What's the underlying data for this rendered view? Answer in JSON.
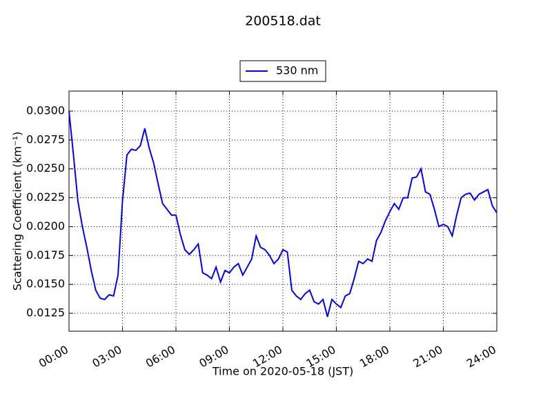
{
  "chart_data": {
    "type": "line",
    "title": "200518.dat",
    "x_label": "Time on 2020-05-18 (JST)",
    "y_label": "Scattering Coefficient (km⁻¹)",
    "x": [
      0,
      0.25,
      0.5,
      0.75,
      1,
      1.25,
      1.5,
      1.75,
      2,
      2.25,
      2.5,
      2.75,
      3,
      3.25,
      3.5,
      3.75,
      4,
      4.25,
      4.5,
      4.75,
      5,
      5.25,
      5.5,
      5.75,
      6,
      6.25,
      6.5,
      6.75,
      7,
      7.25,
      7.5,
      7.75,
      8,
      8.25,
      8.5,
      8.75,
      9,
      9.25,
      9.5,
      9.75,
      10,
      10.25,
      10.5,
      10.75,
      11,
      11.25,
      11.5,
      11.75,
      12,
      12.25,
      12.5,
      12.75,
      13,
      13.25,
      13.5,
      13.75,
      14,
      14.25,
      14.5,
      14.75,
      15,
      15.25,
      15.5,
      15.75,
      16,
      16.25,
      16.5,
      16.75,
      17,
      17.25,
      17.5,
      17.75,
      18,
      18.25,
      18.5,
      18.75,
      19,
      19.25,
      19.5,
      19.75,
      20,
      20.25,
      20.5,
      20.75,
      21,
      21.25,
      21.5,
      21.75,
      22,
      22.25,
      22.5,
      22.75,
      23,
      23.25,
      23.5,
      23.75,
      24
    ],
    "series": [
      {
        "name": "530 nm",
        "color": "#0000ff",
        "values": [
          0.03,
          0.0262,
          0.0222,
          0.02,
          0.0182,
          0.0162,
          0.0145,
          0.0138,
          0.0137,
          0.0141,
          0.014,
          0.0158,
          0.0222,
          0.0262,
          0.0267,
          0.0266,
          0.027,
          0.0285,
          0.0268,
          0.0255,
          0.0237,
          0.022,
          0.0215,
          0.021,
          0.021,
          0.0193,
          0.018,
          0.0176,
          0.018,
          0.0185,
          0.016,
          0.0158,
          0.0155,
          0.0165,
          0.0152,
          0.0162,
          0.016,
          0.0165,
          0.0168,
          0.0158,
          0.0165,
          0.0172,
          0.0192,
          0.0182,
          0.018,
          0.0175,
          0.0168,
          0.0172,
          0.018,
          0.0178,
          0.0145,
          0.014,
          0.0137,
          0.0142,
          0.0145,
          0.0135,
          0.0133,
          0.0137,
          0.0122,
          0.0137,
          0.0133,
          0.013,
          0.014,
          0.0142,
          0.0155,
          0.017,
          0.0168,
          0.0172,
          0.017,
          0.0188,
          0.0195,
          0.0205,
          0.0213,
          0.022,
          0.0215,
          0.0225,
          0.0225,
          0.0242,
          0.0243,
          0.025,
          0.023,
          0.0228,
          0.0215,
          0.02,
          0.0202,
          0.02,
          0.0192,
          0.021,
          0.0225,
          0.0228,
          0.0229,
          0.0223,
          0.0228,
          0.023,
          0.0232,
          0.0218,
          0.0212
        ]
      }
    ],
    "xlim": [
      0,
      24
    ],
    "xticks": [
      {
        "value": 0,
        "label": "00:00"
      },
      {
        "value": 3,
        "label": "03:00"
      },
      {
        "value": 6,
        "label": "06:00"
      },
      {
        "value": 9,
        "label": "09:00"
      },
      {
        "value": 12,
        "label": "12:00"
      },
      {
        "value": 15,
        "label": "15:00"
      },
      {
        "value": 18,
        "label": "18:00"
      },
      {
        "value": 21,
        "label": "21:00"
      },
      {
        "value": 24,
        "label": "24:00"
      }
    ],
    "ylim": [
      0.01095,
      0.03173
    ],
    "yticks": [
      0.0125,
      {
        "value": 0.015,
        "label": "0.0150"
      },
      0.0175,
      {
        "value": 0.02,
        "label": "0.0200"
      },
      0.0225,
      {
        "value": 0.025,
        "label": "0.0250"
      },
      0.0275,
      {
        "value": 0.03,
        "label": "0.0300"
      }
    ],
    "grid": true,
    "legend": "upper center"
  }
}
